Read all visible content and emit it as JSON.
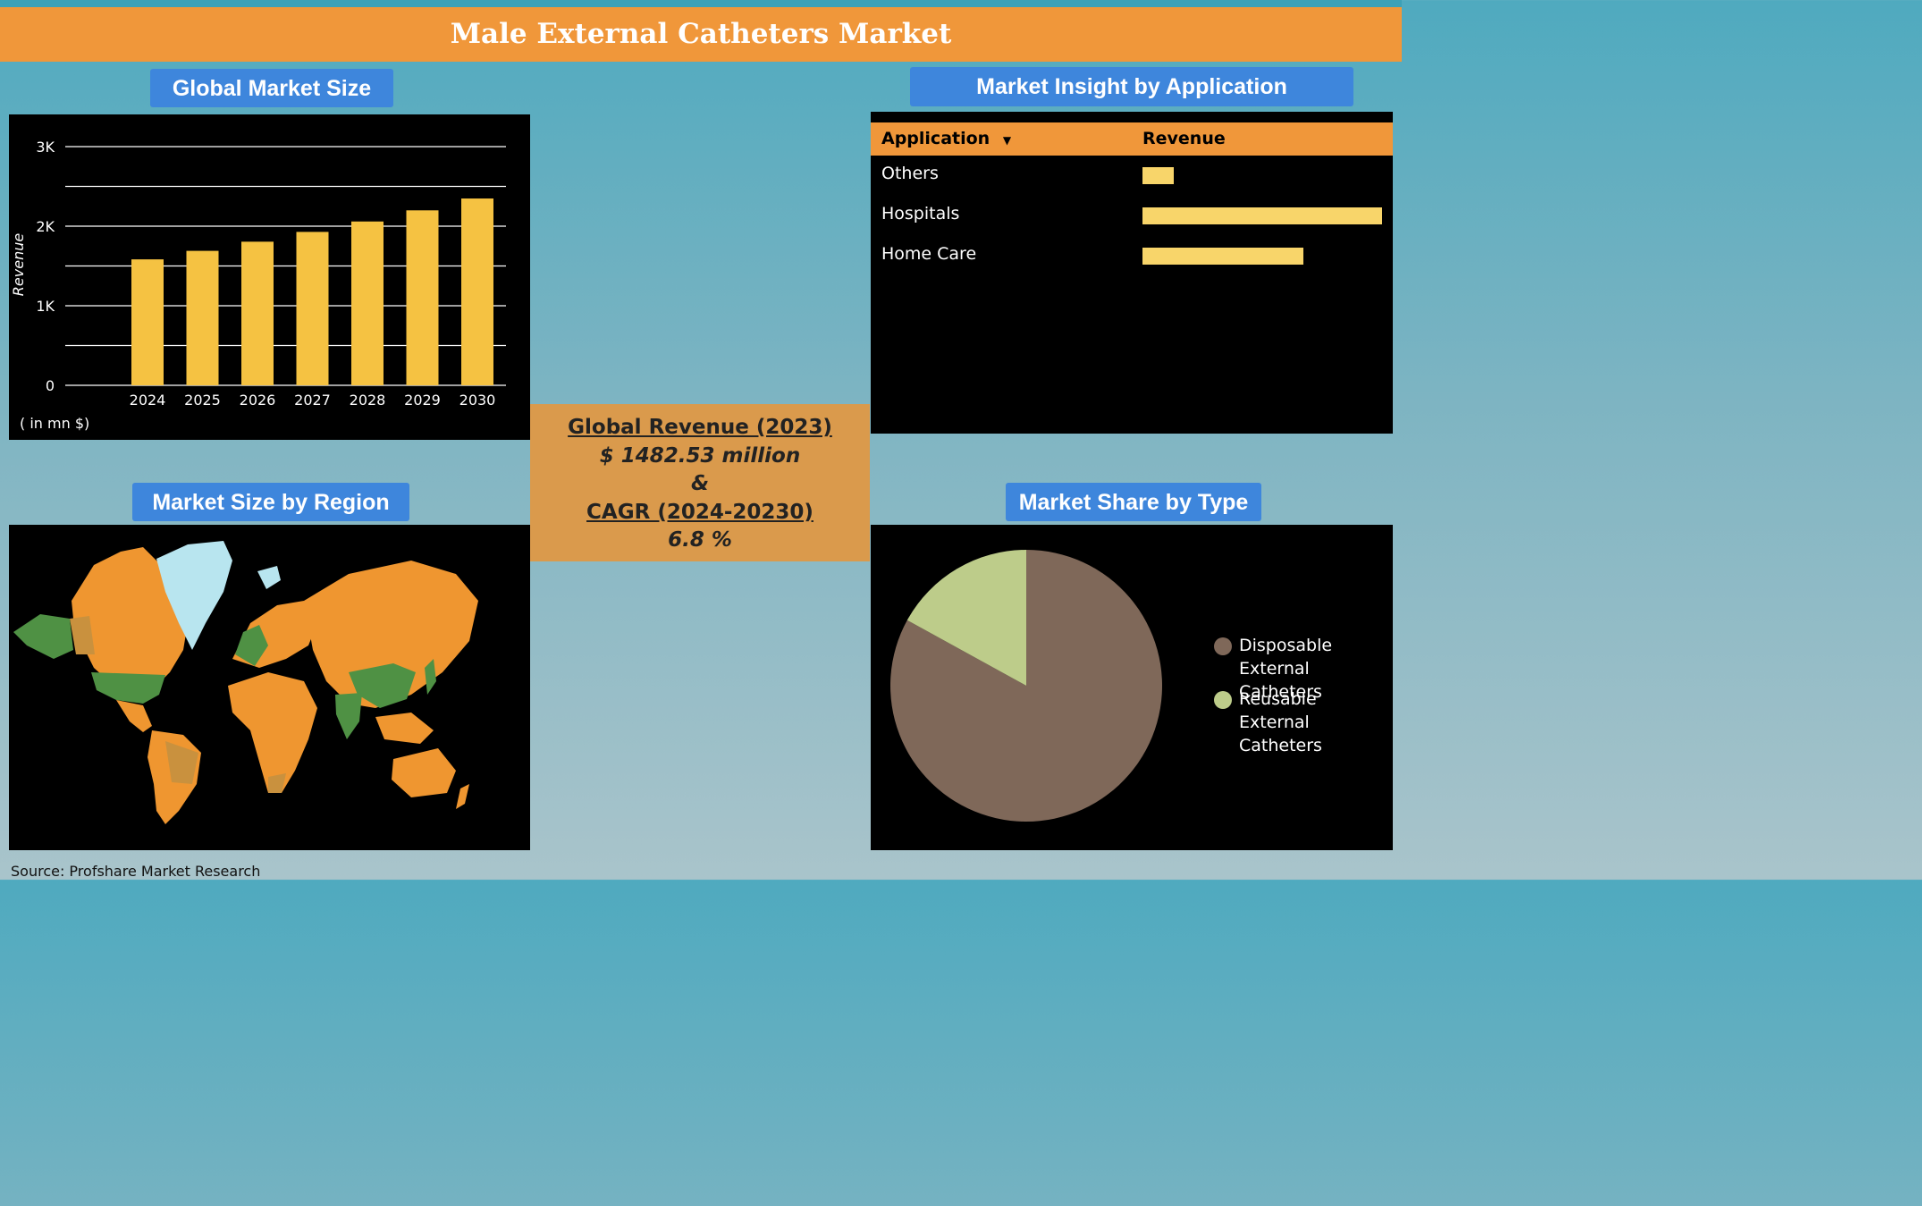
{
  "title": "Male External Catheters Market",
  "sections": {
    "market_size": "Global Market Size",
    "application": "Market Insight by Application",
    "region": "Market Size by Region",
    "type": "Market Share by Type"
  },
  "center": {
    "revenue_label": "Global Revenue (2023)",
    "revenue_value": "$ 1482.53 million",
    "amp": "&",
    "cagr_label": "CAGR (2024-20230)",
    "cagr_value": "6.8 %"
  },
  "unit_note": "( in mn $)",
  "source": "Source: Profshare Market Research",
  "colors": {
    "title_bar": "#f0973a",
    "label_bg": "#3e86dc",
    "bar": "#f5c242",
    "app_bar": "#f8d56a",
    "disposable": "#7f6859",
    "reusable": "#bdcc8a",
    "map_land": "#ef9630",
    "map_highlight": "#4f9144",
    "map_greenland": "#b8e5ef"
  },
  "chart_data": [
    {
      "type": "bar",
      "title": "Global Market Size",
      "categories": [
        "2024",
        "2025",
        "2026",
        "2027",
        "2028",
        "2029",
        "2030"
      ],
      "values": [
        1583,
        1690,
        1805,
        1928,
        2059,
        2199,
        2348
      ],
      "xlabel": "",
      "ylabel": "Revenue",
      "ylim": [
        0,
        3000
      ],
      "yticks": [
        0,
        1000,
        2000,
        3000
      ],
      "ytick_labels": [
        "0",
        "1K",
        "2K",
        "3K"
      ],
      "grid": true
    },
    {
      "type": "bar",
      "title": "Market Insight by Application",
      "orientation": "horizontal",
      "columns": [
        "Application",
        "Revenue"
      ],
      "categories": [
        "Others",
        "Hospitals",
        "Home Care"
      ],
      "values": [
        0.13,
        1.0,
        0.67
      ],
      "value_unit": "fraction of largest bar"
    },
    {
      "type": "pie",
      "title": "Market Share by Type",
      "categories": [
        "Disposable External Catheters",
        "Reusable External Catheters"
      ],
      "values": [
        83,
        17
      ],
      "legend": "right"
    }
  ],
  "map_regions": [
    "North America",
    "Europe",
    "Asia Pacific",
    "Latin America",
    "Middle East & Africa"
  ]
}
